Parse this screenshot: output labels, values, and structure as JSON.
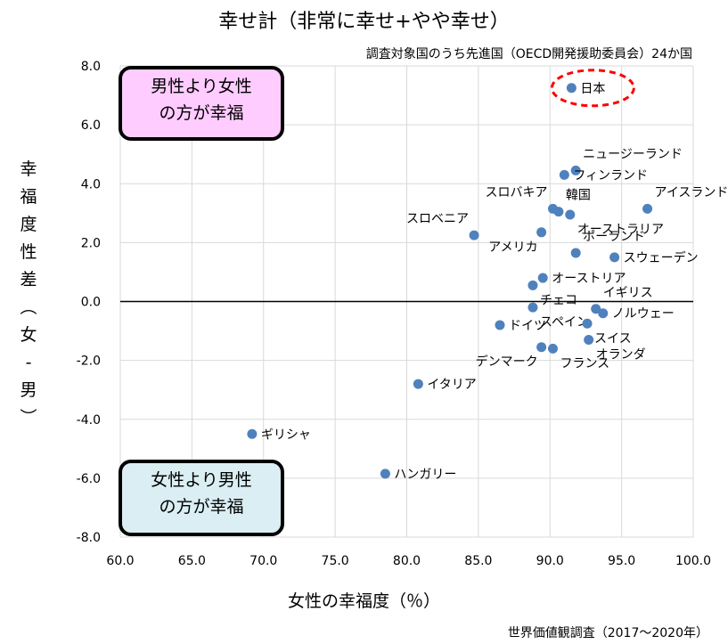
{
  "chart_data": {
    "type": "scatter",
    "title": "幸せ計（非常に幸せ+やや幸せ）",
    "subtitle": "調査対象国のうち先進国（OECD開発援助委員会）24か国",
    "xlabel": "女性の幸福度（％）",
    "ylabel": "幸福度性差（女-男）",
    "source": "世界価値観調査（2017～2020年）",
    "xlim": [
      60,
      100
    ],
    "ylim": [
      -8,
      8
    ],
    "xticks": [
      "60.0",
      "65.0",
      "70.0",
      "75.0",
      "80.0",
      "85.0",
      "90.0",
      "95.0",
      "100.0"
    ],
    "yticks": [
      "8.0",
      "6.0",
      "4.0",
      "2.0",
      "0.0",
      "-2.0",
      "-4.0",
      "-6.0",
      "-8.0"
    ],
    "grid": true,
    "marker_color": "#4f81bd",
    "highlight_color": "#ff0000",
    "points": [
      {
        "name": "日本",
        "x": 91.5,
        "y": 7.25,
        "label_pos": "right",
        "highlight": true
      },
      {
        "name": "ニュージーランド",
        "x": 91.8,
        "y": 4.45,
        "label_pos": "upper-right"
      },
      {
        "name": "フィンランド",
        "x": 91.0,
        "y": 4.3,
        "label_pos": "right"
      },
      {
        "name": "アイスランド",
        "x": 96.8,
        "y": 3.15,
        "label_pos": "upper-right"
      },
      {
        "name": "スロバキア",
        "x": 90.2,
        "y": 3.15,
        "label_pos": "upper-left"
      },
      {
        "name": "韓国",
        "x": 90.6,
        "y": 3.05,
        "label_pos": "upper-right"
      },
      {
        "name": "オーストラリア",
        "x": 91.4,
        "y": 2.95,
        "label_pos": "lower-right"
      },
      {
        "name": "スロベニア",
        "x": 84.7,
        "y": 2.25,
        "label_pos": "upper-left"
      },
      {
        "name": "アメリカ",
        "x": 89.4,
        "y": 2.35,
        "label_pos": "lower-left"
      },
      {
        "name": "ポーランド",
        "x": 91.8,
        "y": 1.65,
        "label_pos": "upper-right"
      },
      {
        "name": "スウェーデン",
        "x": 94.5,
        "y": 1.5,
        "label_pos": "right"
      },
      {
        "name": "オーストリア",
        "x": 89.5,
        "y": 0.8,
        "label_pos": "right"
      },
      {
        "name": "チェコ",
        "x": 88.8,
        "y": 0.55,
        "label_pos": "lower-right"
      },
      {
        "name": "スペイン",
        "x": 88.8,
        "y": -0.2,
        "label_pos": "lower-right"
      },
      {
        "name": "イギリス",
        "x": 93.2,
        "y": -0.25,
        "label_pos": "upper-right"
      },
      {
        "name": "ノルウェー",
        "x": 93.7,
        "y": -0.4,
        "label_pos": "right"
      },
      {
        "name": "スイス",
        "x": 92.6,
        "y": -0.75,
        "label_pos": "lower-right"
      },
      {
        "name": "ドイツ",
        "x": 86.5,
        "y": -0.8,
        "label_pos": "right"
      },
      {
        "name": "オランダ",
        "x": 92.7,
        "y": -1.3,
        "label_pos": "lower-right"
      },
      {
        "name": "デンマーク",
        "x": 89.4,
        "y": -1.55,
        "label_pos": "lower-left"
      },
      {
        "name": "フランス",
        "x": 90.2,
        "y": -1.6,
        "label_pos": "lower-right"
      },
      {
        "name": "イタリア",
        "x": 80.8,
        "y": -2.8,
        "label_pos": "right"
      },
      {
        "name": "ギリシャ",
        "x": 69.2,
        "y": -4.5,
        "label_pos": "right"
      },
      {
        "name": "ハンガリー",
        "x": 78.5,
        "y": -5.85,
        "label_pos": "right"
      }
    ]
  },
  "annotations": {
    "top_box": [
      "男性より女性",
      "の方が幸福"
    ],
    "bottom_box": [
      "女性より男性",
      "の方が幸福"
    ]
  }
}
